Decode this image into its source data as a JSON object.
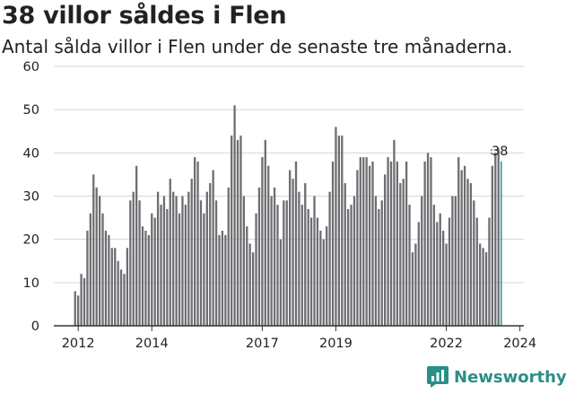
{
  "header": {
    "title": "38 villor såldes i Flen",
    "subtitle": "Antal sålda villor i Flen under de senaste tre månaderna."
  },
  "brand": {
    "name": "Newsworthy",
    "color": "#2a8f86",
    "icon": "newsworthy-chart-icon"
  },
  "colors": {
    "bar": "#6e6d72",
    "highlight": "#2a9d8f",
    "grid": "#d6d6d6",
    "axis": "#333333"
  },
  "chart_data": {
    "type": "bar",
    "title": "38 villor såldes i Flen",
    "subtitle": "Antal sålda villor i Flen under de senaste tre månaderna.",
    "xlabel": "",
    "ylabel": "",
    "ylim": [
      0,
      60
    ],
    "yticks": [
      0,
      10,
      20,
      30,
      40,
      50,
      60
    ],
    "grid": true,
    "xticks": [
      {
        "label": "2012",
        "index": 1
      },
      {
        "label": "2014",
        "index": 25
      },
      {
        "label": "2017",
        "index": 61
      },
      {
        "label": "2019",
        "index": 85
      },
      {
        "label": "2022",
        "index": 121
      },
      {
        "label": "2024",
        "index": 145
      }
    ],
    "start": "2011-12",
    "frequency": "monthly",
    "values": [
      8,
      7,
      12,
      11,
      22,
      26,
      35,
      32,
      30,
      26,
      22,
      21,
      18,
      18,
      15,
      13,
      12,
      18,
      29,
      31,
      37,
      29,
      23,
      22,
      21,
      26,
      25,
      31,
      28,
      30,
      27,
      34,
      31,
      30,
      26,
      30,
      28,
      31,
      34,
      39,
      38,
      29,
      26,
      31,
      33,
      36,
      29,
      21,
      22,
      21,
      32,
      44,
      51,
      43,
      44,
      30,
      23,
      19,
      17,
      26,
      32,
      39,
      43,
      37,
      30,
      32,
      28,
      20,
      29,
      29,
      36,
      34,
      38,
      31,
      28,
      33,
      27,
      25,
      30,
      25,
      22,
      20,
      23,
      31,
      38,
      46,
      44,
      44,
      33,
      27,
      28,
      30,
      36,
      39,
      39,
      39,
      37,
      38,
      30,
      27,
      29,
      35,
      39,
      38,
      43,
      38,
      33,
      34,
      38,
      28,
      17,
      19,
      24,
      30,
      38,
      40,
      39,
      28,
      24,
      26,
      22,
      19,
      25,
      30,
      30,
      39,
      36,
      37,
      34,
      33,
      29,
      25,
      19,
      18,
      17,
      25,
      37,
      40,
      41,
      38
    ],
    "highlight_last": true,
    "annotation": {
      "text": "38"
    }
  }
}
